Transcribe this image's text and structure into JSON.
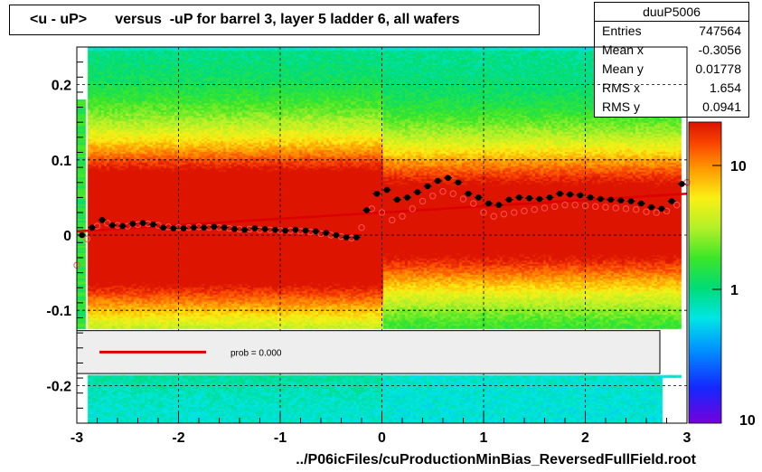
{
  "title": "<u - uP>       versus  -uP for barrel 3, layer 5 ladder 6, all wafers",
  "x_axis_label": "../P06icFiles/cuProductionMinBias_ReversedFullField.root",
  "stats": {
    "name": "duuP5006",
    "rows": [
      {
        "label": "Entries",
        "value": "747564"
      },
      {
        "label": "Mean x",
        "value": "-0.3056"
      },
      {
        "label": "Mean y",
        "value": "0.01778"
      },
      {
        "label": "RMS x",
        "value": "1.654"
      },
      {
        "label": "RMS y",
        "value": "0.0941"
      }
    ]
  },
  "legend": {
    "fit_text": "prob = 0.000",
    "fit_color": "#dd0000"
  },
  "colors": {
    "fit_line": "#dd0000",
    "profile_black": "#000000",
    "profile_open": "#ff5555"
  },
  "chart_data": {
    "type": "heatmap",
    "xlim": [
      -3,
      3
    ],
    "ylim": [
      -0.25,
      0.25
    ],
    "x_ticks": [
      "-3",
      "-2",
      "-1",
      "0",
      "1",
      "2",
      "3"
    ],
    "y_ticks": [
      "-0.2",
      "-0.1",
      "0",
      "0.1",
      "0.2"
    ],
    "z_scale": "log",
    "z_ticks": [
      "1",
      "10"
    ],
    "z_tick_partial": "10",
    "grid": true,
    "fit_line": {
      "x": [
        -3,
        3
      ],
      "y": [
        0.005,
        0.055
      ]
    },
    "series_black": {
      "x": [
        -2.95,
        -2.85,
        -2.75,
        -2.65,
        -2.55,
        -2.45,
        -2.35,
        -2.25,
        -2.15,
        -2.05,
        -1.95,
        -1.85,
        -1.75,
        -1.65,
        -1.55,
        -1.45,
        -1.35,
        -1.25,
        -1.15,
        -1.05,
        -0.95,
        -0.85,
        -0.75,
        -0.65,
        -0.55,
        -0.45,
        -0.35,
        -0.25,
        -0.15,
        -0.05,
        0.05,
        0.15,
        0.25,
        0.35,
        0.45,
        0.55,
        0.65,
        0.75,
        0.85,
        0.95,
        1.05,
        1.15,
        1.25,
        1.35,
        1.45,
        1.55,
        1.65,
        1.75,
        1.85,
        1.95,
        2.05,
        2.15,
        2.25,
        2.35,
        2.45,
        2.55,
        2.65,
        2.75,
        2.85,
        2.95
      ],
      "y": [
        0.0,
        0.01,
        0.02,
        0.013,
        0.012,
        0.015,
        0.016,
        0.014,
        0.01,
        0.009,
        0.009,
        0.01,
        0.01,
        0.011,
        0.01,
        0.008,
        0.007,
        0.009,
        0.008,
        0.007,
        0.006,
        0.007,
        0.006,
        0.005,
        0.003,
        0.0,
        -0.003,
        -0.003,
        0.033,
        0.055,
        0.06,
        0.047,
        0.05,
        0.057,
        0.065,
        0.072,
        0.076,
        0.07,
        0.055,
        0.05,
        0.042,
        0.04,
        0.047,
        0.05,
        0.049,
        0.048,
        0.05,
        0.055,
        0.054,
        0.053,
        0.05,
        0.048,
        0.047,
        0.046,
        0.045,
        0.042,
        0.037,
        0.035,
        0.045,
        0.068
      ]
    },
    "series_open": {
      "x": [
        -3.0,
        -2.9,
        -2.8,
        -2.7,
        -2.6,
        -2.5,
        -2.4,
        -2.3,
        -2.2,
        -2.1,
        -2.0,
        -1.9,
        -1.8,
        -1.7,
        -1.6,
        -1.5,
        -1.4,
        -1.3,
        -1.2,
        -1.1,
        -1.0,
        -0.9,
        -0.8,
        -0.7,
        -0.6,
        -0.5,
        -0.4,
        -0.3,
        -0.2,
        -0.1,
        0.0,
        0.1,
        0.2,
        0.3,
        0.4,
        0.5,
        0.6,
        0.7,
        0.8,
        0.9,
        1.0,
        1.1,
        1.2,
        1.3,
        1.4,
        1.5,
        1.6,
        1.7,
        1.8,
        1.9,
        2.0,
        2.1,
        2.2,
        2.3,
        2.4,
        2.5,
        2.6,
        2.7,
        2.8,
        2.9,
        3.0
      ],
      "y": [
        -0.04,
        -0.005,
        0.012,
        0.016,
        0.013,
        0.012,
        0.014,
        0.015,
        0.013,
        0.011,
        0.01,
        0.01,
        0.011,
        0.01,
        0.01,
        0.009,
        0.008,
        0.008,
        0.007,
        0.007,
        0.006,
        0.006,
        0.005,
        0.004,
        0.002,
        0.0,
        -0.002,
        -0.004,
        0.01,
        0.035,
        0.03,
        0.02,
        0.025,
        0.035,
        0.045,
        0.052,
        0.058,
        0.055,
        0.048,
        0.042,
        0.03,
        0.025,
        0.028,
        0.03,
        0.032,
        0.034,
        0.036,
        0.038,
        0.04,
        0.04,
        0.039,
        0.038,
        0.037,
        0.036,
        0.035,
        0.034,
        0.031,
        0.03,
        0.032,
        0.04,
        0.07
      ]
    }
  }
}
